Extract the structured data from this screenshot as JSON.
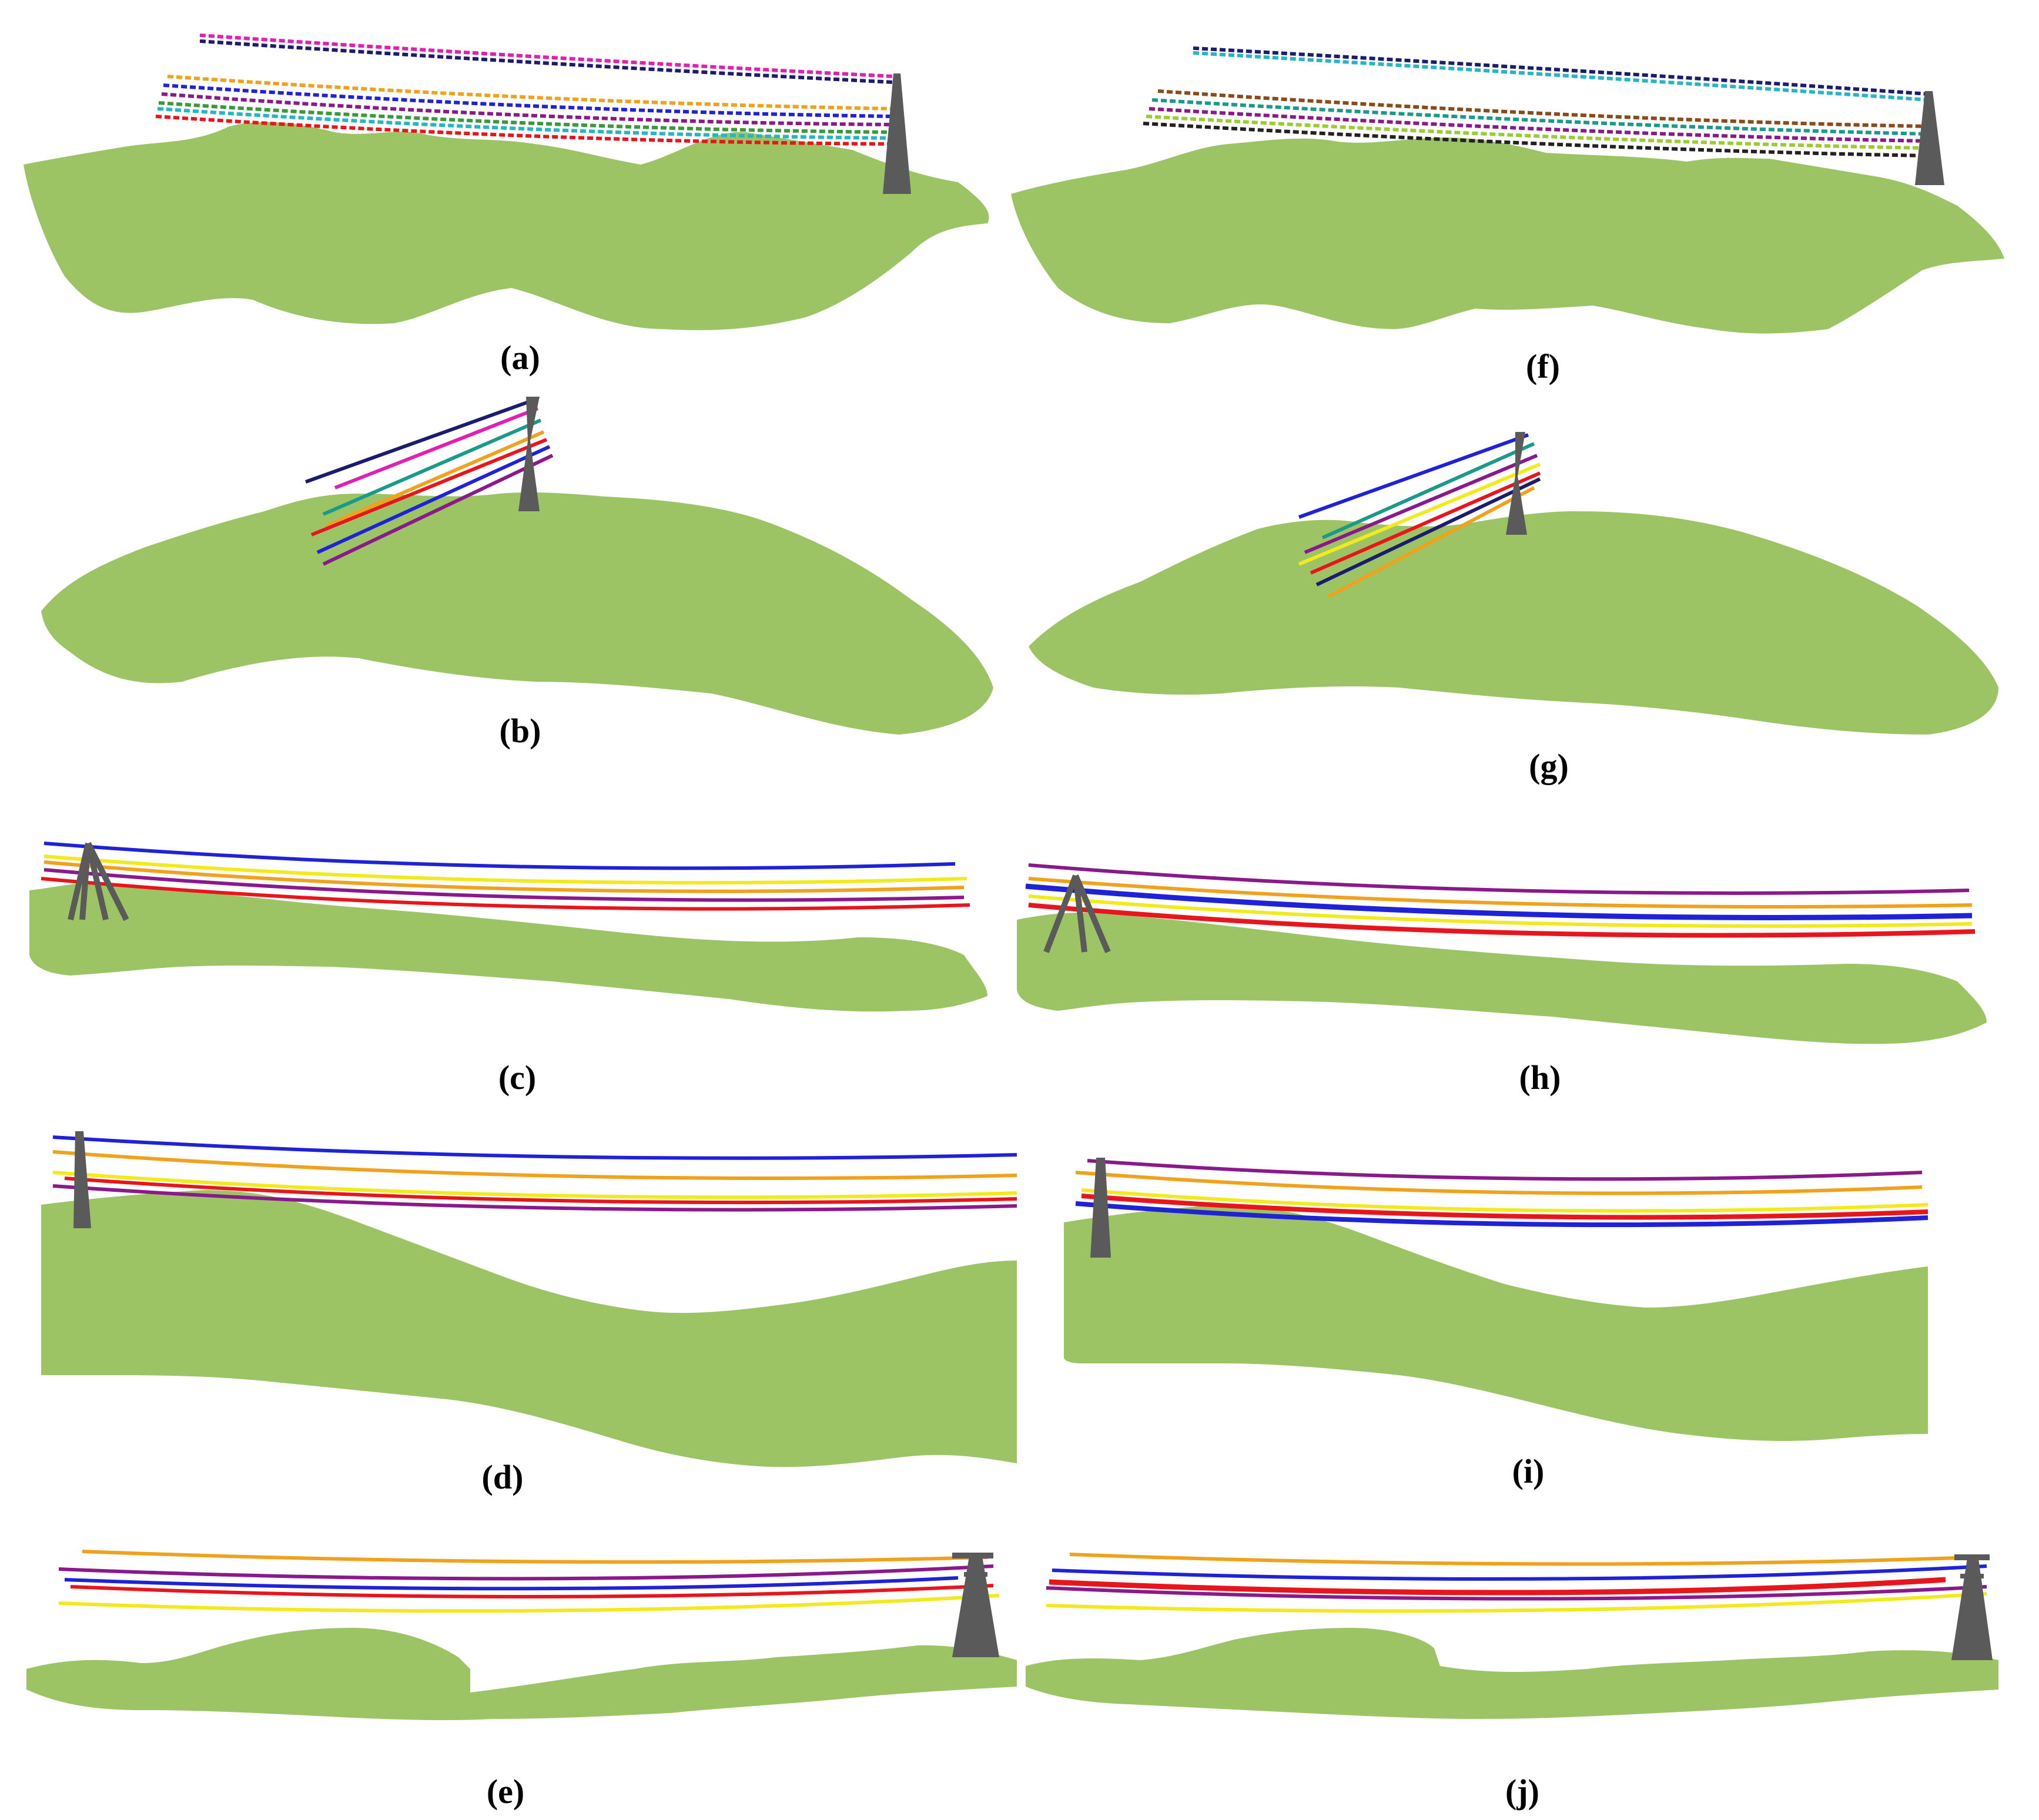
{
  "figure": {
    "panels": [
      {
        "id": "a",
        "caption": "(a)"
      },
      {
        "id": "b",
        "caption": "(b)"
      },
      {
        "id": "c",
        "caption": "(c)"
      },
      {
        "id": "d",
        "caption": "(d)"
      },
      {
        "id": "e",
        "caption": "(e)"
      },
      {
        "id": "f",
        "caption": "(f)"
      },
      {
        "id": "g",
        "caption": "(g)"
      },
      {
        "id": "h",
        "caption": "(h)"
      },
      {
        "id": "i",
        "caption": "(i)"
      },
      {
        "id": "j",
        "caption": "(j)"
      }
    ]
  },
  "colors": {
    "background": "#ffffff",
    "ground": "#9dc464",
    "tower": "#5a5a5a",
    "text": "#000000",
    "wire_blue": "#1f22d6",
    "wire_red": "#e8161c",
    "wire_orange": "#f0a21c",
    "wire_yellow": "#f2ea1c",
    "wire_purple": "#8a1a8c",
    "wire_navy": "#1c1c6e",
    "wire_magenta": "#e020b0",
    "wire_teal": "#1a9a8a",
    "wire_green": "#3a9a3a",
    "wire_cyan": "#25b5c5",
    "wire_brown": "#8b4a1a",
    "wire_black": "#222222"
  },
  "icons": {
    "tower": "transmission-tower-icon",
    "ground": "vegetation-point-cloud"
  }
}
